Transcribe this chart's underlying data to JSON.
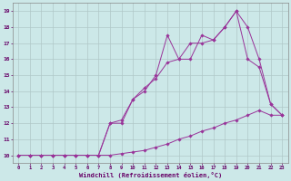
{
  "xlabel": "Windchill (Refroidissement éolien,°C)",
  "bg_color": "#cce8e8",
  "line_color": "#993399",
  "grid_color": "#b0c8c8",
  "xlim": [
    -0.5,
    23.5
  ],
  "ylim": [
    9.5,
    19.5
  ],
  "xticks": [
    0,
    1,
    2,
    3,
    4,
    5,
    6,
    7,
    8,
    9,
    10,
    11,
    12,
    13,
    14,
    15,
    16,
    17,
    18,
    19,
    20,
    21,
    22,
    23
  ],
  "yticks": [
    10,
    11,
    12,
    13,
    14,
    15,
    16,
    17,
    18,
    19
  ],
  "series1_x": [
    0,
    1,
    2,
    3,
    4,
    5,
    6,
    7,
    8,
    9,
    10,
    11,
    12,
    13,
    14,
    15,
    16,
    17,
    18,
    19,
    20,
    21,
    22,
    23
  ],
  "series1_y": [
    10.0,
    10.0,
    10.0,
    10.0,
    10.0,
    10.0,
    10.0,
    10.0,
    10.0,
    10.1,
    10.2,
    10.3,
    10.5,
    10.7,
    11.0,
    11.2,
    11.5,
    11.7,
    12.0,
    12.2,
    12.5,
    12.8,
    12.5,
    12.5
  ],
  "series2_x": [
    0,
    1,
    2,
    3,
    4,
    5,
    6,
    7,
    8,
    9,
    10,
    11,
    12,
    13,
    14,
    15,
    16,
    17,
    18,
    19,
    20,
    21,
    22,
    23
  ],
  "series2_y": [
    10.0,
    10.0,
    10.0,
    10.0,
    10.0,
    10.0,
    10.0,
    10.0,
    12.0,
    12.0,
    13.5,
    14.2,
    14.8,
    15.8,
    16.0,
    16.0,
    17.5,
    17.2,
    18.0,
    19.0,
    16.0,
    15.5,
    13.2,
    12.5
  ],
  "series3_x": [
    0,
    1,
    2,
    3,
    4,
    5,
    6,
    7,
    8,
    9,
    10,
    11,
    12,
    13,
    14,
    15,
    16,
    17,
    18,
    19,
    20,
    21,
    22,
    23
  ],
  "series3_y": [
    10.0,
    10.0,
    10.0,
    10.0,
    10.0,
    10.0,
    10.0,
    10.0,
    12.0,
    12.2,
    13.5,
    14.0,
    15.0,
    17.5,
    16.0,
    17.0,
    17.0,
    17.2,
    18.0,
    19.0,
    18.0,
    16.0,
    13.2,
    12.5
  ]
}
